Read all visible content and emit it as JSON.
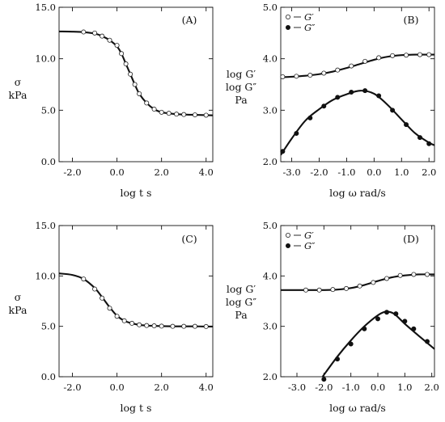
{
  "chart_data": [
    {
      "panel": "A",
      "type": "line",
      "tag": "(A)",
      "xlabel": "log t  s",
      "ylabel": [
        "σ",
        "kPa"
      ],
      "xlim": [
        -2.6,
        4.3
      ],
      "ylim": [
        0,
        15
      ],
      "xticks": [
        -2,
        0,
        2,
        4
      ],
      "xticklabels": [
        "-2.0",
        "0.0",
        "2.0",
        "4.0"
      ],
      "yticks": [
        0,
        5,
        10,
        15
      ],
      "yticklabels": [
        "0.0",
        "5.0",
        "10.0",
        "15.0"
      ],
      "series": [
        {
          "marker": "open",
          "x": [
            -1.5,
            -1.0,
            -0.67,
            -0.33,
            0.0,
            0.2,
            0.4,
            0.6,
            0.8,
            1.0,
            1.33,
            1.67,
            2.0,
            2.33,
            2.67,
            3.0,
            3.5,
            4.0
          ],
          "y": [
            12.6,
            12.5,
            12.2,
            11.8,
            11.3,
            10.5,
            9.5,
            8.5,
            7.5,
            6.6,
            5.7,
            5.1,
            4.8,
            4.7,
            4.62,
            4.58,
            4.55,
            4.52
          ]
        }
      ],
      "fit": {
        "x": [
          -2.6,
          -2.0,
          -1.5,
          -1.0,
          -0.67,
          -0.33,
          0.0,
          0.2,
          0.4,
          0.6,
          0.8,
          1.0,
          1.33,
          1.67,
          2.0,
          2.33,
          2.67,
          3.0,
          3.5,
          4.0,
          4.3
        ],
        "y": [
          12.65,
          12.63,
          12.58,
          12.45,
          12.2,
          11.8,
          11.2,
          10.5,
          9.5,
          8.5,
          7.5,
          6.6,
          5.7,
          5.1,
          4.8,
          4.7,
          4.62,
          4.58,
          4.55,
          4.52,
          4.5
        ]
      }
    },
    {
      "panel": "B",
      "type": "line",
      "tag": "(B)",
      "xlabel": "log ω  rad/s",
      "ylabel": [
        "log G′",
        "log G″",
        "Pa"
      ],
      "xlim": [
        -3.4,
        2.2
      ],
      "ylim": [
        2,
        5
      ],
      "xticks": [
        -3,
        -2,
        -1,
        0,
        1,
        2
      ],
      "xticklabels": [
        "-3.0",
        "-2.0",
        "-1.0",
        "0.0",
        "1.0",
        "2.0"
      ],
      "yticks": [
        2,
        3,
        4,
        5
      ],
      "yticklabels": [
        "2.0",
        "3.0",
        "4.0",
        "5.0"
      ],
      "legend": [
        {
          "marker": "open",
          "label": "G′"
        },
        {
          "marker": "filled",
          "label": "G″"
        }
      ],
      "series": [
        {
          "marker": "open",
          "x": [
            -3.33,
            -2.83,
            -2.33,
            -1.83,
            -1.33,
            -0.83,
            -0.33,
            0.17,
            0.67,
            1.17,
            1.67,
            2.0
          ],
          "y": [
            3.65,
            3.66,
            3.68,
            3.72,
            3.78,
            3.86,
            3.95,
            4.02,
            4.06,
            4.07,
            4.08,
            4.08
          ]
        },
        {
          "marker": "filled",
          "x": [
            -3.33,
            -2.83,
            -2.33,
            -1.83,
            -1.33,
            -0.83,
            -0.33,
            0.17,
            0.67,
            1.17,
            1.67,
            2.0
          ],
          "y": [
            2.2,
            2.55,
            2.85,
            3.08,
            3.25,
            3.35,
            3.38,
            3.28,
            3.0,
            2.72,
            2.47,
            2.35
          ]
        }
      ],
      "fits": [
        {
          "x": [
            -3.4,
            -3.0,
            -2.5,
            -2.0,
            -1.5,
            -1.0,
            -0.5,
            0.0,
            0.5,
            1.0,
            1.5,
            2.0,
            2.2
          ],
          "y": [
            3.64,
            3.65,
            3.67,
            3.7,
            3.75,
            3.82,
            3.9,
            3.98,
            4.04,
            4.07,
            4.08,
            4.08,
            4.08
          ]
        },
        {
          "x": [
            -3.4,
            -3.0,
            -2.5,
            -2.0,
            -1.5,
            -1.0,
            -0.5,
            0.0,
            0.5,
            1.0,
            1.5,
            2.0,
            2.2
          ],
          "y": [
            2.13,
            2.45,
            2.8,
            3.02,
            3.2,
            3.31,
            3.38,
            3.32,
            3.1,
            2.82,
            2.55,
            2.37,
            2.32
          ]
        }
      ]
    },
    {
      "panel": "C",
      "type": "line",
      "tag": "(C)",
      "xlabel": "log t  s",
      "ylabel": [
        "σ",
        "kPa"
      ],
      "xlim": [
        -2.6,
        4.3
      ],
      "ylim": [
        0,
        15
      ],
      "xticks": [
        -2,
        0,
        2,
        4
      ],
      "xticklabels": [
        "-2.0",
        "0.0",
        "2.0",
        "4.0"
      ],
      "yticks": [
        0,
        5,
        10,
        15
      ],
      "yticklabels": [
        "0.0",
        "5.0",
        "10.0",
        "15.0"
      ],
      "series": [
        {
          "marker": "open",
          "x": [
            -1.5,
            -1.0,
            -0.67,
            -0.33,
            0.0,
            0.33,
            0.67,
            1.0,
            1.33,
            1.67,
            2.0,
            2.5,
            3.0,
            3.5,
            4.0
          ],
          "y": [
            9.7,
            8.7,
            7.8,
            6.8,
            6.0,
            5.55,
            5.3,
            5.15,
            5.08,
            5.05,
            5.02,
            5.0,
            5.0,
            5.0,
            4.98
          ]
        }
      ],
      "fit": {
        "x": [
          -2.6,
          -2.0,
          -1.5,
          -1.0,
          -0.67,
          -0.33,
          0.0,
          0.33,
          0.67,
          1.0,
          1.33,
          1.67,
          2.0,
          2.5,
          3.0,
          3.5,
          4.0,
          4.3
        ],
        "y": [
          10.25,
          10.1,
          9.7,
          8.8,
          7.9,
          6.9,
          6.05,
          5.55,
          5.3,
          5.15,
          5.08,
          5.05,
          5.02,
          5.0,
          5.0,
          5.0,
          4.98,
          4.98
        ]
      }
    },
    {
      "panel": "D",
      "type": "line",
      "tag": "(D)",
      "xlabel": "log ω  rad/s",
      "ylabel": [
        "log G′",
        "log G″",
        "Pa"
      ],
      "xlim": [
        -3.6,
        2.1
      ],
      "ylim": [
        2,
        5
      ],
      "xticks": [
        -3,
        -2,
        -1,
        0,
        1,
        2
      ],
      "xticklabels": [
        "-3.0",
        "-2.0",
        "-1.0",
        "0.0",
        "1.0",
        "2.0"
      ],
      "yticks": [
        2,
        3,
        4,
        5
      ],
      "yticklabels": [
        "2.0",
        "3.0",
        "4.0",
        "5.0"
      ],
      "legend": [
        {
          "marker": "open",
          "label": "G′"
        },
        {
          "marker": "filled",
          "label": "G″"
        }
      ],
      "series": [
        {
          "marker": "open",
          "x": [
            -2.67,
            -2.17,
            -1.67,
            -1.17,
            -0.67,
            -0.17,
            0.33,
            0.83,
            1.33,
            1.83
          ],
          "y": [
            3.72,
            3.72,
            3.73,
            3.75,
            3.8,
            3.87,
            3.95,
            4.01,
            4.03,
            4.03
          ]
        },
        {
          "marker": "filled",
          "x": [
            -2.0,
            -1.5,
            -1.0,
            -0.5,
            0.0,
            0.33,
            0.67,
            1.0,
            1.33,
            1.83
          ],
          "y": [
            1.95,
            2.35,
            2.65,
            2.95,
            3.15,
            3.28,
            3.25,
            3.1,
            2.95,
            2.7
          ]
        }
      ],
      "fits": [
        {
          "x": [
            -3.6,
            -3.0,
            -2.5,
            -2.0,
            -1.5,
            -1.0,
            -0.5,
            0.0,
            0.5,
            1.0,
            1.5,
            2.1
          ],
          "y": [
            3.72,
            3.72,
            3.72,
            3.72,
            3.73,
            3.76,
            3.82,
            3.9,
            3.97,
            4.01,
            4.03,
            4.03
          ]
        },
        {
          "x": [
            -2.05,
            -1.5,
            -1.0,
            -0.5,
            0.0,
            0.3,
            0.6,
            1.0,
            1.5,
            2.1
          ],
          "y": [
            2.0,
            2.4,
            2.72,
            3.0,
            3.22,
            3.29,
            3.25,
            3.05,
            2.82,
            2.55
          ]
        }
      ]
    }
  ]
}
